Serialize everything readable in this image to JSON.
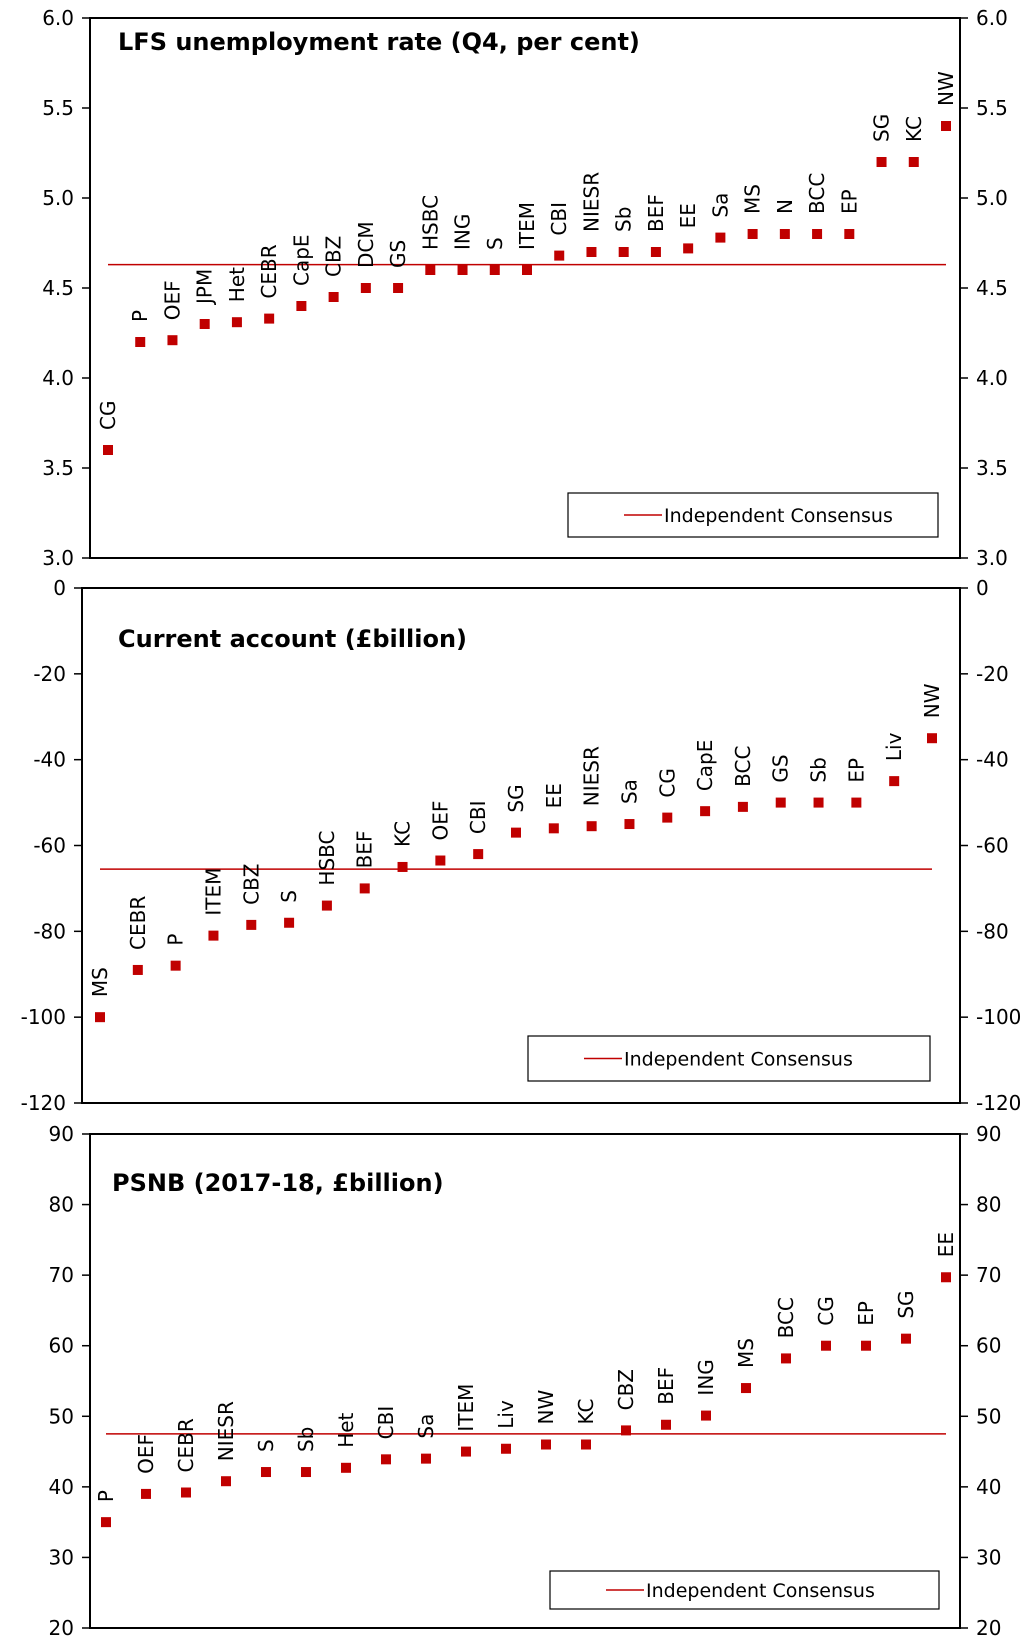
{
  "colors": {
    "marker": "#c00000",
    "consensus_line": "#c00000",
    "axis": "#000000"
  },
  "chart_data": [
    {
      "type": "scatter",
      "title": "LFS unemployment rate (Q4, per cent)",
      "ylim": [
        3.0,
        6.0
      ],
      "yticks": [
        "3.0",
        "3.5",
        "4.0",
        "4.5",
        "5.0",
        "5.5",
        "6.0"
      ],
      "ytick_values": [
        3.0,
        3.5,
        4.0,
        4.5,
        5.0,
        5.5,
        6.0
      ],
      "categories": [
        "CG",
        "P",
        "OEF",
        "JPM",
        "Het",
        "CEBR",
        "CapE",
        "CBZ",
        "DCM",
        "GS",
        "HSBC",
        "ING",
        "S",
        "ITEM",
        "CBI",
        "NIESR",
        "Sb",
        "BEF",
        "EE",
        "Sa",
        "MS",
        "N",
        "BCC",
        "EP",
        "SG",
        "KC",
        "NW"
      ],
      "values": [
        3.6,
        4.2,
        4.21,
        4.3,
        4.31,
        4.33,
        4.4,
        4.45,
        4.5,
        4.5,
        4.6,
        4.6,
        4.6,
        4.6,
        4.68,
        4.7,
        4.7,
        4.7,
        4.72,
        4.78,
        4.8,
        4.8,
        4.8,
        4.8,
        5.2,
        5.2,
        5.4
      ],
      "consensus": 4.63,
      "legend": "Independent Consensus",
      "legend_position": "bottom-right",
      "grid": false
    },
    {
      "type": "scatter",
      "title": "Current account (£billion)",
      "ylim": [
        -120,
        0
      ],
      "yticks": [
        "-120",
        "-100",
        "-80",
        "-60",
        "-40",
        "-20",
        "0"
      ],
      "ytick_values": [
        -120,
        -100,
        -80,
        -60,
        -40,
        -20,
        0
      ],
      "categories": [
        "MS",
        "CEBR",
        "P",
        "ITEM",
        "CBZ",
        "S",
        "HSBC",
        "BEF",
        "KC",
        "OEF",
        "CBI",
        "SG",
        "EE",
        "NIESR",
        "Sa",
        "CG",
        "CapE",
        "BCC",
        "GS",
        "Sb",
        "EP",
        "Liv",
        "NW"
      ],
      "values": [
        -100,
        -89,
        -88,
        -81,
        -78.5,
        -78,
        -74,
        -70,
        -65,
        -63.5,
        -62,
        -57,
        -56,
        -55.5,
        -55,
        -53.5,
        -52,
        -51,
        -50,
        -50,
        -50,
        -45,
        -35
      ],
      "consensus": -65.5,
      "legend": "Independent Consensus",
      "legend_position": "bottom-right",
      "grid": false
    },
    {
      "type": "scatter",
      "title": "PSNB (2017-18, £billion)",
      "ylim": [
        20,
        90
      ],
      "yticks": [
        "20",
        "30",
        "40",
        "50",
        "60",
        "70",
        "80",
        "90"
      ],
      "ytick_values": [
        20,
        30,
        40,
        50,
        60,
        70,
        80,
        90
      ],
      "categories": [
        "P",
        "OEF",
        "CEBR",
        "NIESR",
        "S",
        "Sb",
        "Het",
        "CBI",
        "Sa",
        "ITEM",
        "Liv",
        "NW",
        "KC",
        "CBZ",
        "BEF",
        "ING",
        "MS",
        "BCC",
        "CG",
        "EP",
        "SG",
        "EE"
      ],
      "values": [
        35,
        39,
        39.2,
        40.8,
        42.1,
        42.1,
        42.7,
        43.9,
        44,
        45,
        45.4,
        46,
        46,
        48,
        48.8,
        50.1,
        54,
        58.2,
        60,
        60,
        61,
        69.7
      ],
      "consensus": 47.5,
      "legend": "Independent Consensus",
      "legend_position": "bottom-right",
      "grid": false
    }
  ]
}
